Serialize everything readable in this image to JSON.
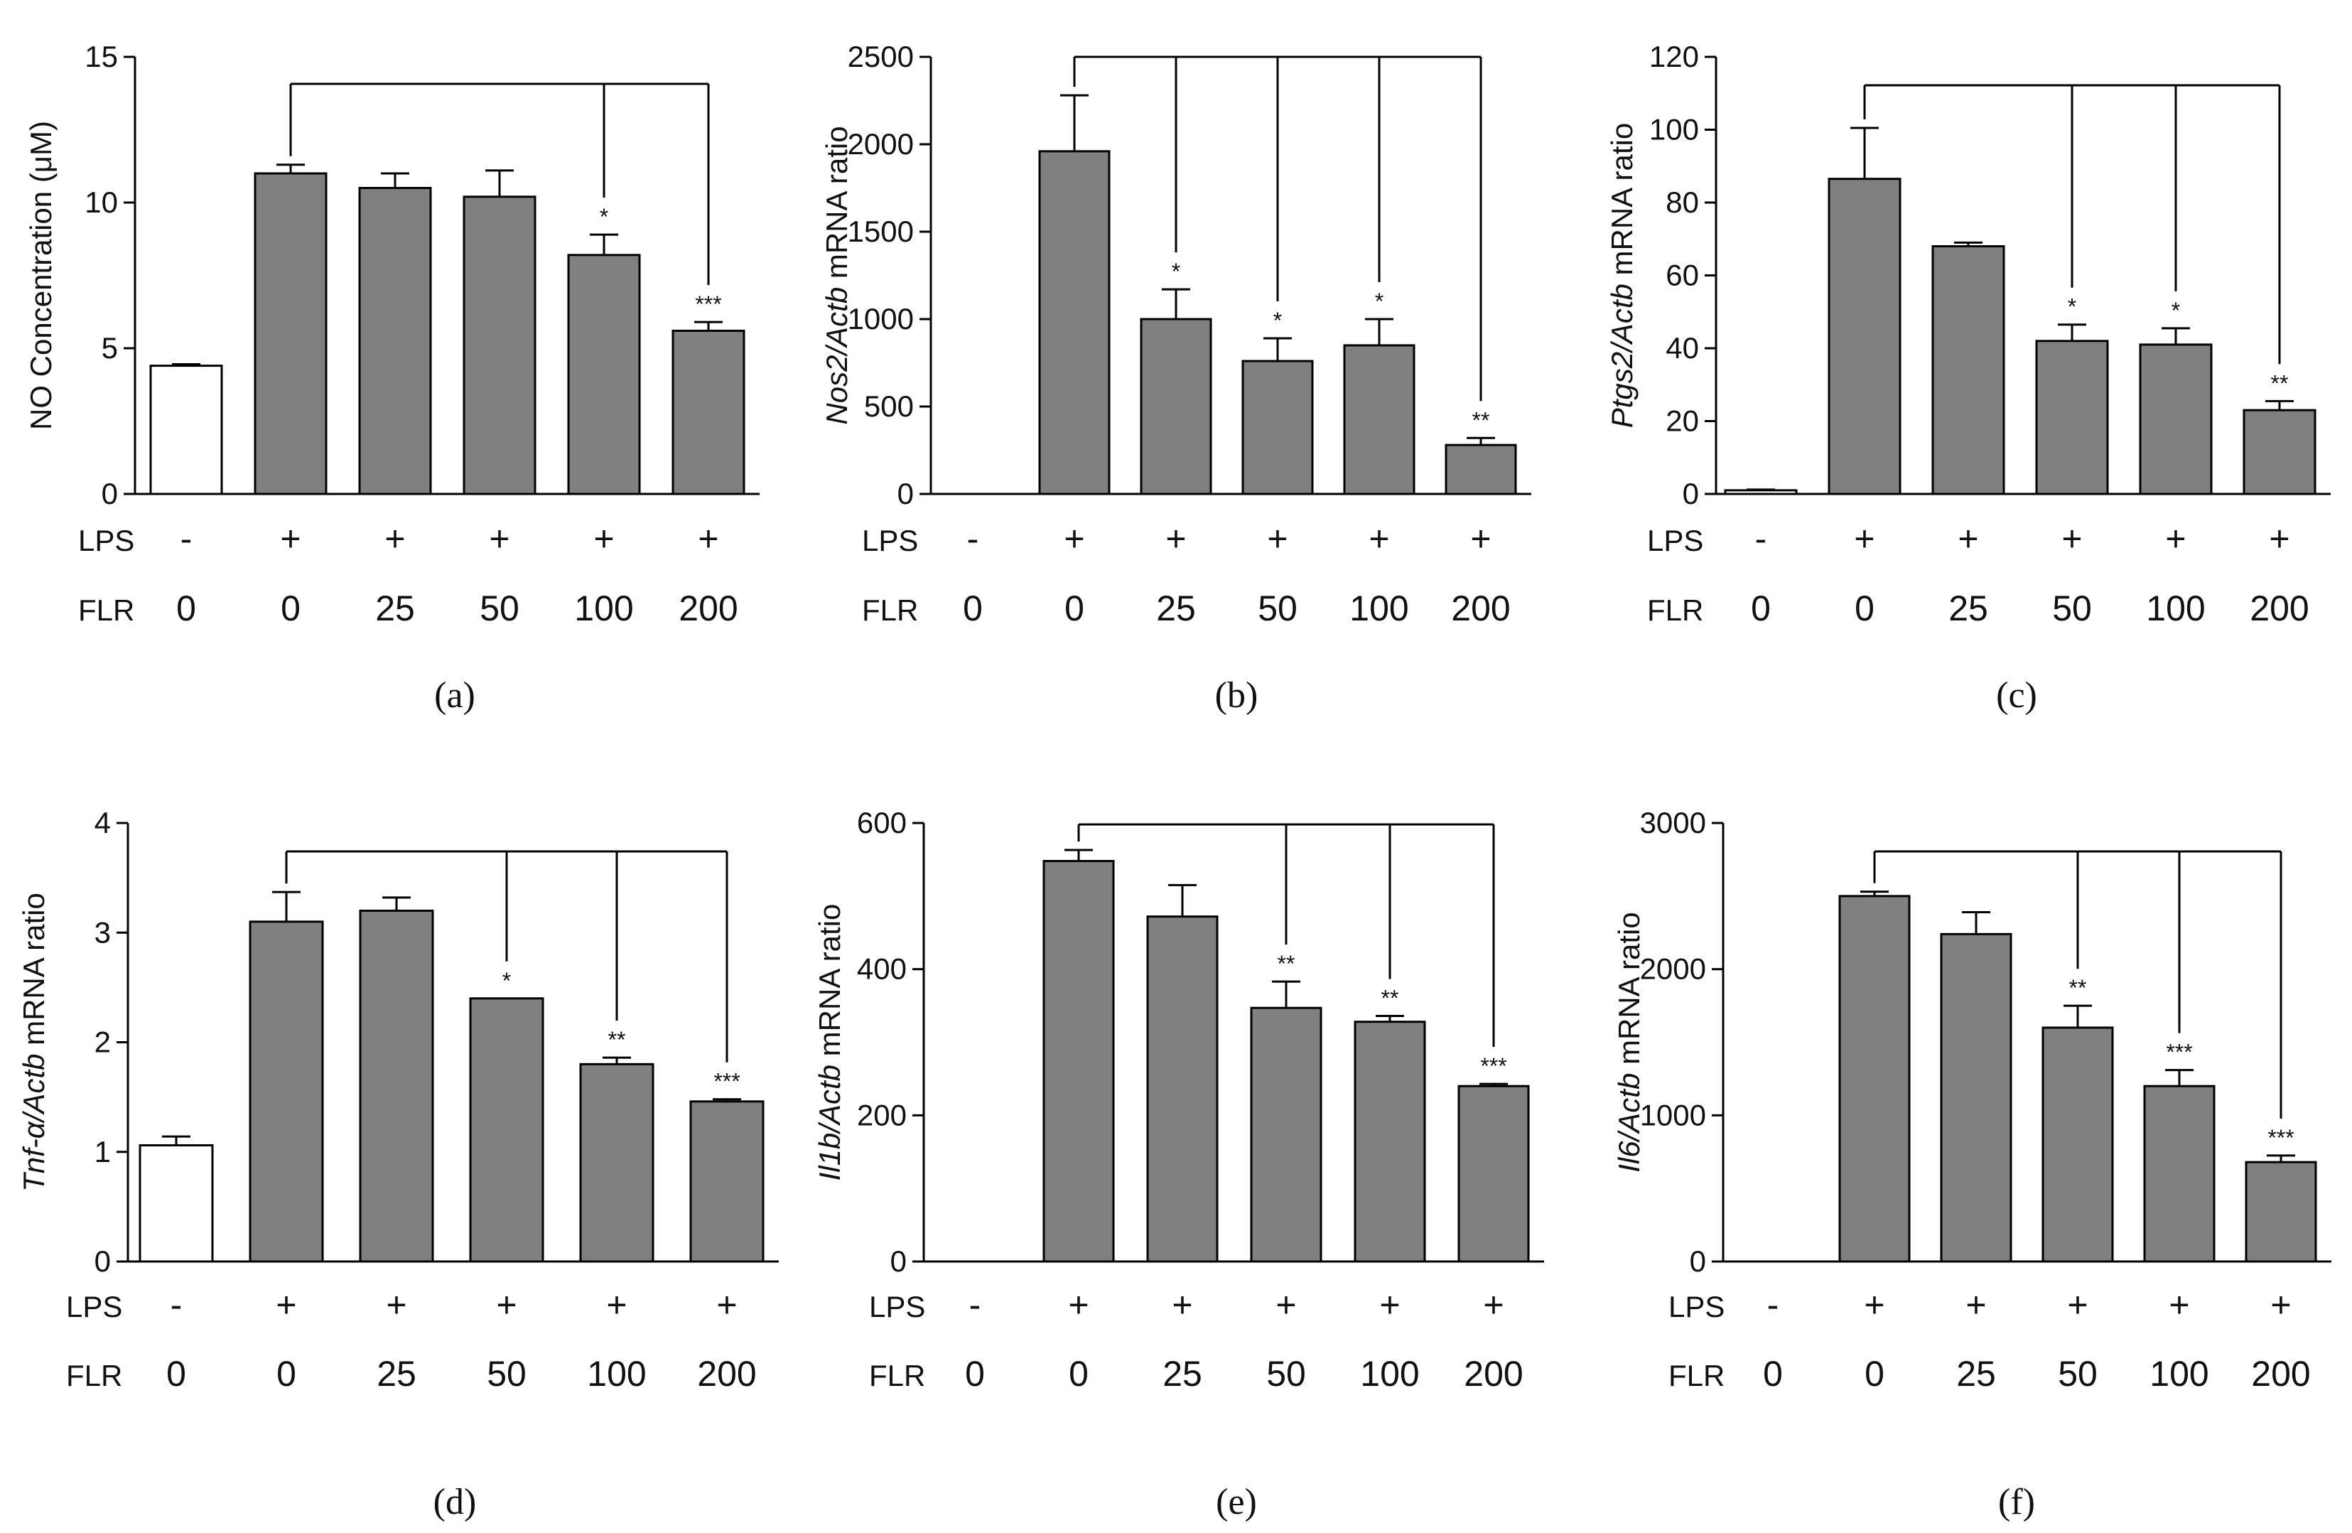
{
  "figure": {
    "row_labels": {
      "lps": "LPS",
      "flr": "FLR"
    },
    "lps_values": [
      "-",
      "+",
      "+",
      "+",
      "+",
      "+"
    ],
    "flr_values": [
      "0",
      "0",
      "25",
      "50",
      "100",
      "200"
    ],
    "colors": {
      "control_bar": "#ffffff",
      "treated_bar": "#808080",
      "stroke": "#000000"
    }
  },
  "chart_data": [
    {
      "type": "bar",
      "panel_label": "(a)",
      "ylabel": {
        "plain": "NO Concentration (",
        "greek": "μ",
        "tail": "M)"
      },
      "ylim": [
        0,
        15
      ],
      "yticks": [
        0,
        5,
        10,
        15
      ],
      "values": [
        4.4,
        11.0,
        10.5,
        10.2,
        8.2,
        5.6
      ],
      "errors": [
        0.05,
        0.3,
        0.5,
        0.9,
        0.7,
        0.3
      ],
      "significance": [
        "",
        "",
        "",
        "",
        "*",
        "***"
      ],
      "comparison_from": 1,
      "comparison_to": [
        4,
        5
      ]
    },
    {
      "type": "bar",
      "panel_label": "(b)",
      "ylabel": {
        "gene": "Nos2",
        "ref": "Actb",
        "suffix": " mRNA ratio"
      },
      "ylim": [
        0,
        2500
      ],
      "yticks": [
        0,
        500,
        1000,
        1500,
        2000,
        2500
      ],
      "values": [
        0,
        1960,
        1000,
        760,
        850,
        280
      ],
      "errors": [
        0,
        320,
        170,
        130,
        150,
        40
      ],
      "significance": [
        "",
        "",
        "*",
        "*",
        "*",
        "**"
      ],
      "comparison_from": 1,
      "comparison_to": [
        2,
        3,
        4,
        5
      ]
    },
    {
      "type": "bar",
      "panel_label": "(c)",
      "ylabel": {
        "gene": "Ptgs2",
        "ref": "Actb",
        "suffix": " mRNA ratio"
      },
      "ylim": [
        0,
        120
      ],
      "yticks": [
        0,
        20,
        40,
        60,
        80,
        100,
        120
      ],
      "values": [
        1,
        86.5,
        68,
        42,
        41,
        23
      ],
      "errors": [
        0.2,
        14,
        1,
        4.5,
        4.5,
        2.5
      ],
      "significance": [
        "",
        "",
        "",
        "*",
        "*",
        "**"
      ],
      "comparison_from": 1,
      "comparison_to": [
        3,
        4,
        5
      ]
    },
    {
      "type": "bar",
      "panel_label": "(d)",
      "ylabel": {
        "gene": "Tnf-",
        "greek": "α",
        "ref": "Actb",
        "suffix": " mRNA ratio"
      },
      "ylim": [
        0,
        4
      ],
      "yticks": [
        0,
        1,
        2,
        3,
        4
      ],
      "values": [
        1.06,
        3.1,
        3.2,
        2.4,
        1.8,
        1.46
      ],
      "errors": [
        0.08,
        0.27,
        0.12,
        0.0,
        0.06,
        0.02
      ],
      "significance": [
        "",
        "",
        "",
        "*",
        "**",
        "***"
      ],
      "comparison_from": 1,
      "comparison_to": [
        3,
        4,
        5
      ]
    },
    {
      "type": "bar",
      "panel_label": "(e)",
      "ylabel": {
        "gene": "Il1b",
        "ref": "Actb",
        "suffix": " mRNA ratio"
      },
      "ylim": [
        0,
        600
      ],
      "yticks": [
        0,
        200,
        400,
        600
      ],
      "values": [
        0,
        548,
        472,
        347,
        328,
        240
      ],
      "errors": [
        0,
        15,
        43,
        36,
        8,
        3
      ],
      "significance": [
        "",
        "",
        "",
        "**",
        "**",
        "***"
      ],
      "comparison_from": 1,
      "comparison_to": [
        3,
        4,
        5
      ]
    },
    {
      "type": "bar",
      "panel_label": "(f)",
      "ylabel": {
        "gene": "Il6",
        "ref": "Actb",
        "suffix": " mRNA ratio"
      },
      "ylim": [
        0,
        3000
      ],
      "yticks": [
        0,
        1000,
        2000,
        3000
      ],
      "values": [
        0,
        2500,
        2240,
        1600,
        1200,
        680
      ],
      "errors": [
        0,
        30,
        150,
        150,
        110,
        45
      ],
      "significance": [
        "",
        "",
        "",
        "**",
        "***",
        "***"
      ],
      "comparison_from": 1,
      "comparison_to": [
        3,
        4,
        5
      ]
    }
  ]
}
